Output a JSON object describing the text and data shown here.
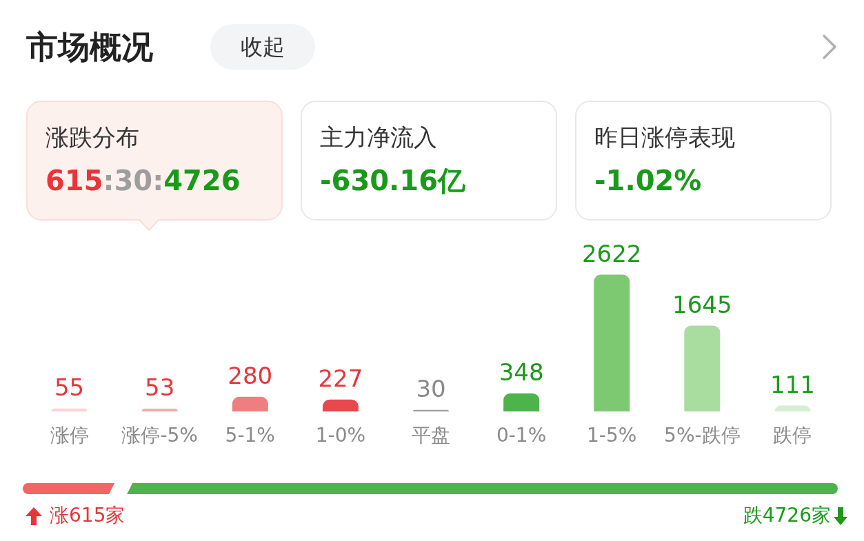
{
  "chart_data": [
    {
      "type": "other",
      "title": "市场概况",
      "annotations": [
        "收起",
        "涨跌分布",
        "615:30:4726",
        "主力净流入",
        "-630.16亿",
        "昨日涨停表现",
        "-1.02%"
      ]
    },
    {
      "type": "bar",
      "categories": [
        "涨停",
        "涨停-5%",
        "5-1%",
        "1-0%",
        "平盘",
        "0-1%",
        "1-5%",
        "5%-跌停",
        "跌停"
      ],
      "values": [
        55,
        53,
        280,
        227,
        30,
        348,
        2622,
        1645,
        111
      ],
      "colors": [
        "#fdd3d3",
        "#f5a9a9",
        "#ef7f7f",
        "#e8484b",
        "#9e9e9e",
        "#4cb44a",
        "#7dc972",
        "#a9dc9f",
        "#d6efd1"
      ],
      "data_labels": true,
      "annotations": [
        "涨615家",
        "跌4726家"
      ]
    }
  ]
}
